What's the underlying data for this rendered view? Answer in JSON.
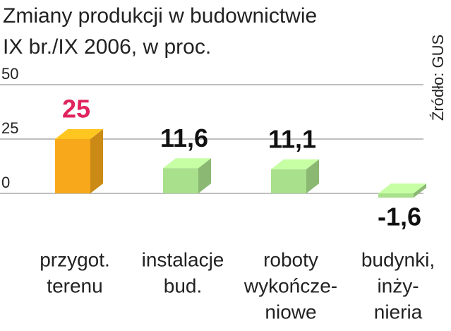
{
  "chart_data": {
    "type": "bar3d",
    "title": [
      "Zmiany produkcji w budownictwie",
      "IX br./IX 2006, w proc."
    ],
    "source": "Źródło: GUS",
    "categories": [
      [
        "przygot.",
        "terenu"
      ],
      [
        "instalacje",
        "bud."
      ],
      [
        "roboty",
        "wykończe-",
        "niowe"
      ],
      [
        "budynki,",
        "inży-",
        "nieria"
      ]
    ],
    "values": [
      25,
      11.6,
      11.1,
      -1.6
    ],
    "value_labels": [
      "25",
      "11,6",
      "11,1",
      "-1,6"
    ],
    "colors": [
      "#f7a81b",
      "#a9e08c",
      "#a9e08c",
      "#a9e08c"
    ],
    "label_colors": [
      "#e0245e",
      "#111111",
      "#111111",
      "#111111"
    ],
    "ylim": [
      0,
      50
    ],
    "yticks": [
      0,
      25,
      50
    ],
    "grid": true
  }
}
